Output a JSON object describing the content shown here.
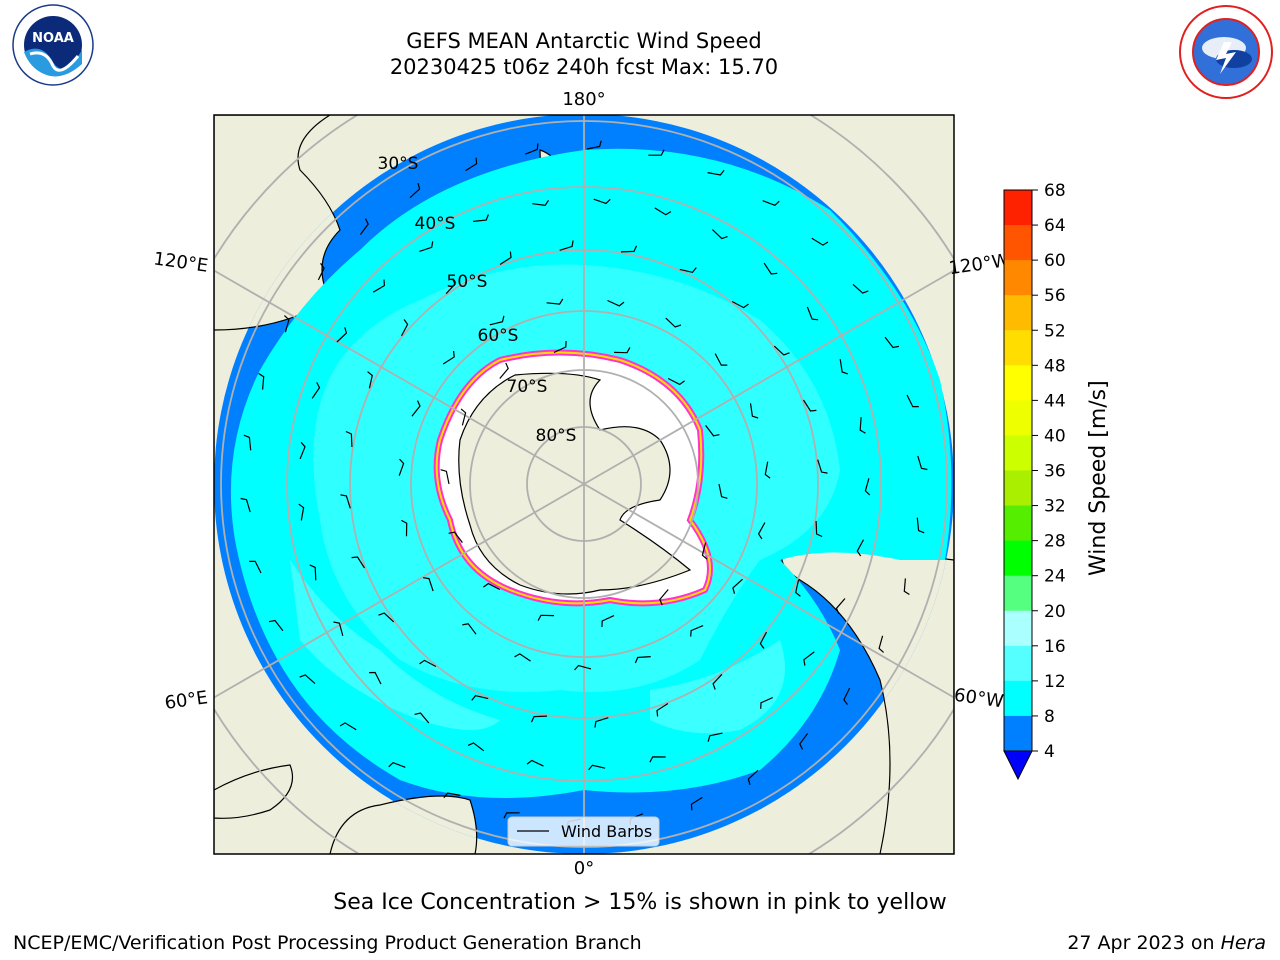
{
  "header": {
    "title_line1": "GEFS MEAN Antarctic Wind Speed",
    "title_line2": "20230425 t06z 240h fcst   Max: 15.70"
  },
  "logos": {
    "left": {
      "name": "NOAA",
      "icon": "noaa-logo-icon",
      "text": "NOAA"
    },
    "right": {
      "name": "National Weather Service",
      "icon": "nws-logo-icon"
    }
  },
  "map": {
    "projection": "south polar stereographic",
    "meridian_labels": {
      "top": "180°",
      "bottom": "0°",
      "left_upper": "120°E",
      "left_lower": "60°E",
      "right_upper": "120°W",
      "right_lower": "60°W"
    },
    "latitude_labels": [
      "30°S",
      "40°S",
      "50°S",
      "60°S",
      "70°S",
      "80°S"
    ],
    "legend": {
      "label": "Wind Barbs"
    },
    "colors": {
      "land": "#eeeedc",
      "ice": "#ffffff",
      "ice_edge": "#ff33cc",
      "wind_4_8": "#0080ff",
      "wind_8_12": "#00ffff",
      "wind_12_16": "#55ffff",
      "grid": "#b0b0b0"
    }
  },
  "colorbar": {
    "label": "Wind Speed [m/s]",
    "ticks": [
      "4",
      "8",
      "12",
      "16",
      "20",
      "24",
      "28",
      "32",
      "36",
      "40",
      "44",
      "48",
      "52",
      "56",
      "60",
      "64",
      "68"
    ],
    "colors": [
      "#0080ff",
      "#00ffff",
      "#55ffff",
      "#aaffff",
      "#55ff80",
      "#00ff00",
      "#55ee00",
      "#aaee00",
      "#ccff00",
      "#eeff00",
      "#ffff00",
      "#ffdd00",
      "#ffbb00",
      "#ff8800",
      "#ff5500",
      "#ff2200"
    ],
    "extend_min_color": "#0000ff",
    "top_color": "#ff0000"
  },
  "footer": {
    "ice_note": "Sea Ice Concentration > 15% is shown in pink to yellow",
    "branch": "NCEP/EMC/Verification Post Processing Product Generation Branch",
    "date": "27 Apr 2023 on",
    "host": "Hera"
  }
}
